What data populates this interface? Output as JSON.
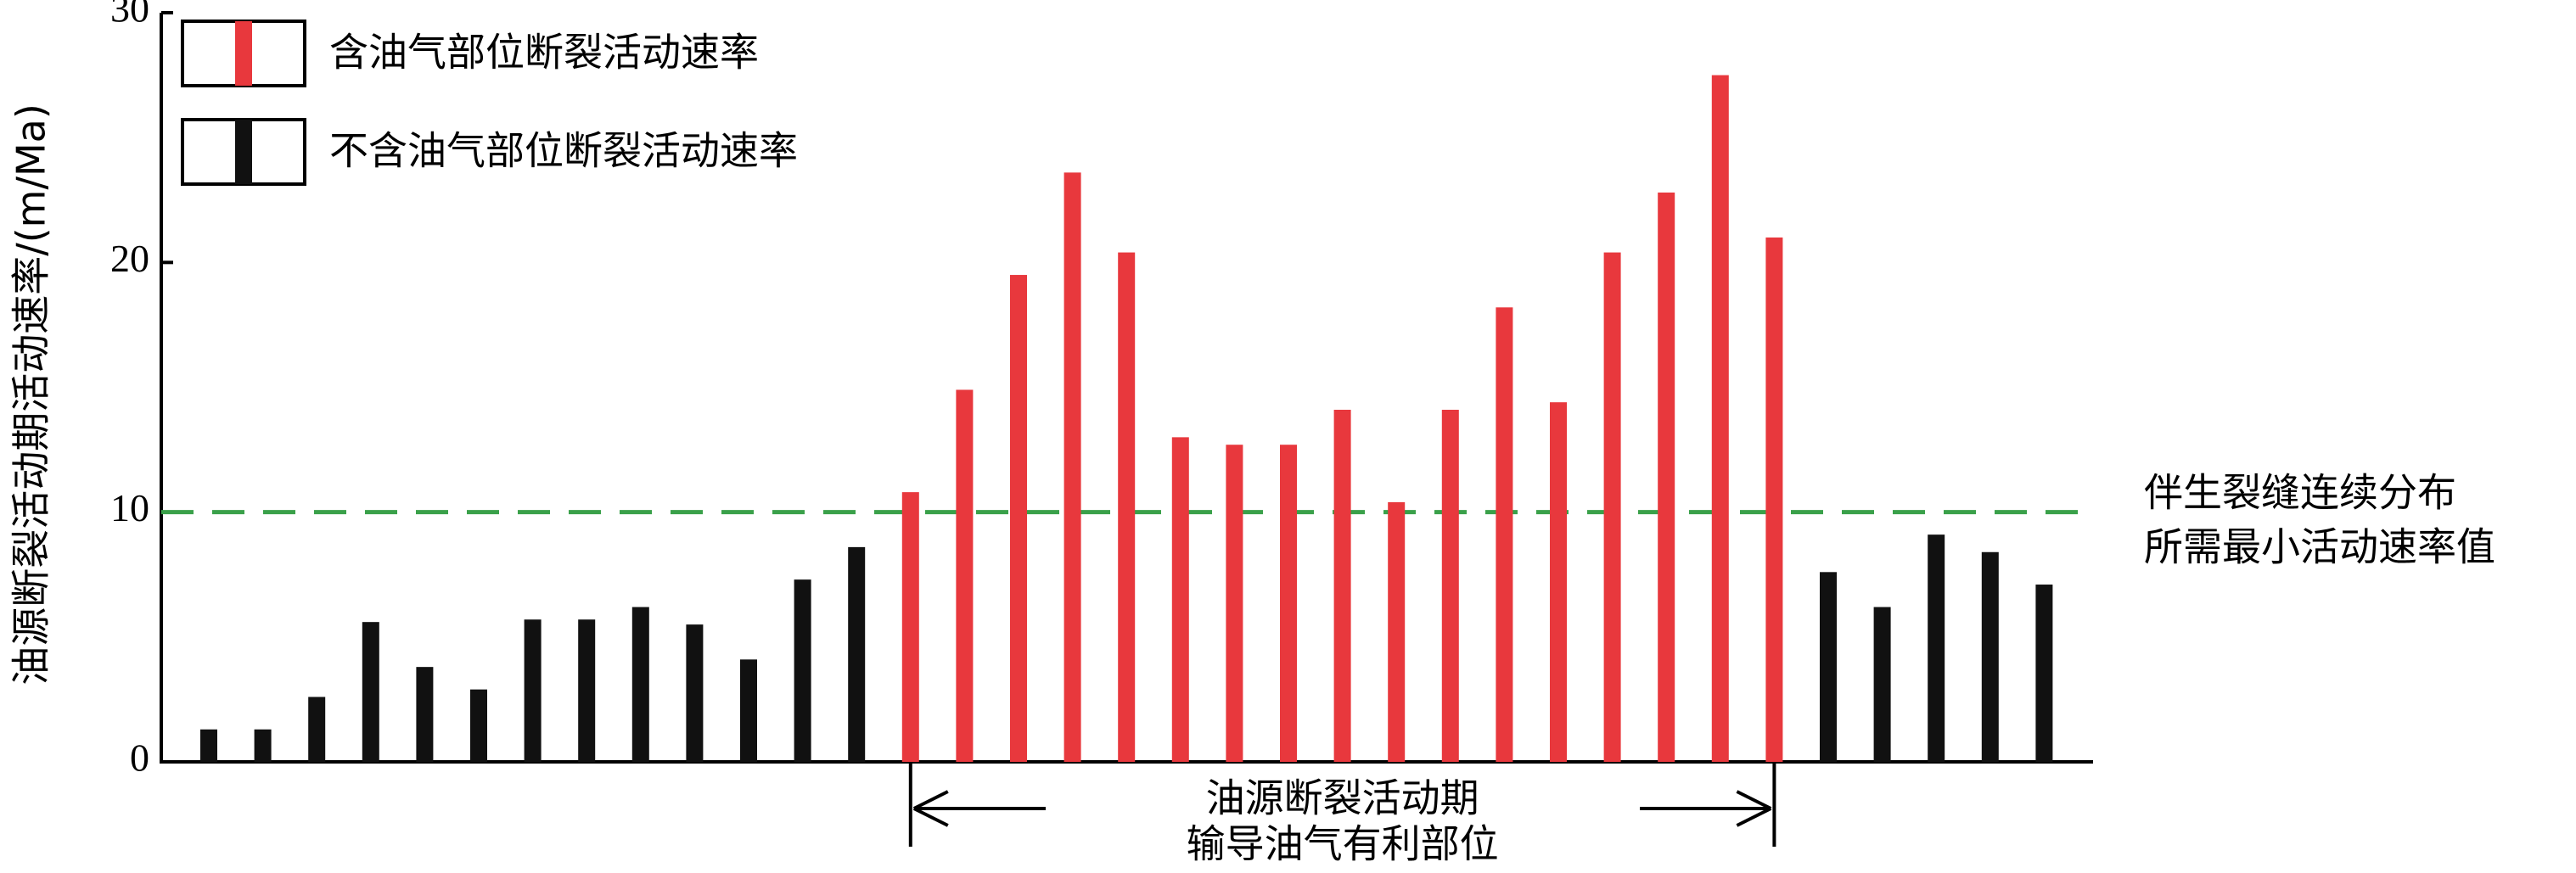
{
  "chart_data": {
    "type": "bar",
    "y_label": "油源断裂活动期活动速率/(m/Ma)",
    "ylim": [
      0,
      30
    ],
    "yticks": [
      0,
      10,
      20,
      30
    ],
    "series": [
      {
        "name": "含油气部位断裂活动速率",
        "color": "#e8383d",
        "values": [
          null,
          null,
          null,
          null,
          null,
          null,
          null,
          null,
          null,
          null,
          null,
          null,
          null,
          10.8,
          14.9,
          19.5,
          23.6,
          20.4,
          13.0,
          12.7,
          12.7,
          14.1,
          10.4,
          14.1,
          18.2,
          14.4,
          20.4,
          22.8,
          27.5,
          21.0,
          null,
          null,
          null,
          null,
          null
        ]
      },
      {
        "name": "不含油气部位断裂活动速率",
        "color": "#111111",
        "values": [
          1.3,
          1.3,
          2.6,
          5.6,
          3.8,
          2.9,
          5.7,
          5.7,
          6.2,
          5.5,
          4.1,
          7.3,
          8.6,
          null,
          null,
          null,
          null,
          null,
          null,
          null,
          null,
          null,
          null,
          null,
          null,
          null,
          null,
          null,
          null,
          null,
          7.6,
          6.2,
          9.1,
          8.4,
          7.1
        ]
      }
    ],
    "threshold": {
      "value": 10,
      "color": "#3aa14a",
      "label": [
        "伴生裂缝连续分布",
        "所需最小活动速率值"
      ]
    },
    "bracket": {
      "label": [
        "油源断裂活动期",
        "输导油气有利部位"
      ]
    }
  }
}
